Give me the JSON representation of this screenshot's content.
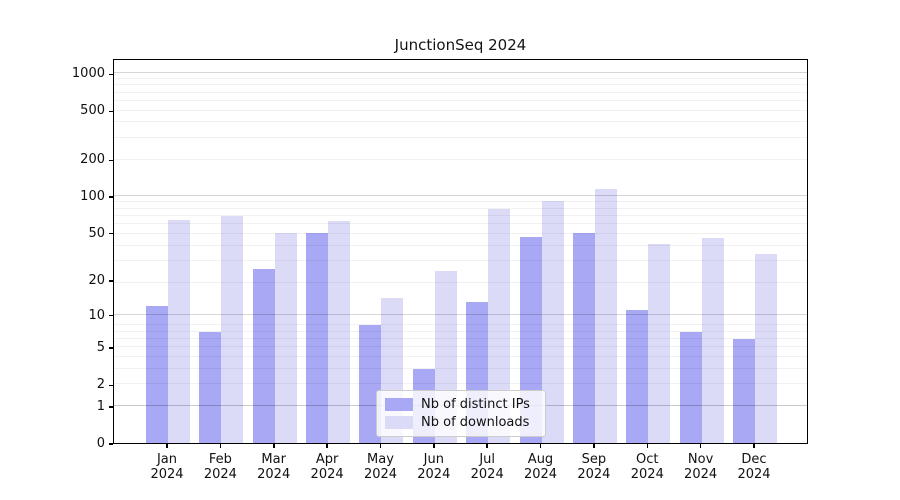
{
  "title": "JunctionSeq 2024",
  "chart_data": {
    "type": "bar",
    "title": "JunctionSeq 2024",
    "categories": [
      "Jan",
      "Feb",
      "Mar",
      "Apr",
      "May",
      "Jun",
      "Jul",
      "Aug",
      "Sep",
      "Oct",
      "Nov",
      "Dec"
    ],
    "year_label": "2024",
    "series": [
      {
        "name": "Nb of distinct IPs",
        "color": "#a8a8f4",
        "values": [
          12,
          7,
          25,
          50,
          8,
          3,
          13,
          46,
          50,
          11,
          7,
          6
        ]
      },
      {
        "name": "Nb of downloads",
        "color": "#dbdbf8",
        "values": [
          64,
          68,
          50,
          63,
          14,
          24,
          78,
          92,
          115,
          40,
          45,
          33
        ]
      }
    ],
    "yscale": "log1p",
    "ylim": [
      0,
      1332
    ],
    "yticks": [
      1000,
      500,
      200,
      100,
      50,
      20,
      10,
      5,
      2,
      1,
      0
    ],
    "grid": true,
    "legend_position": "lower center"
  },
  "colors": {
    "grid_major": "rgba(0,0,0,0.16)",
    "grid_minor": "rgba(0,0,0,0.055)",
    "axis": "#000000",
    "text": "#111111"
  }
}
